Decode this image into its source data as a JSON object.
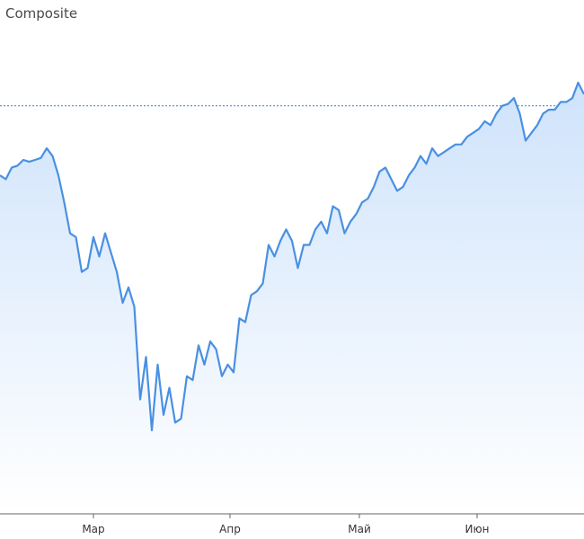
{
  "header": {
    "title": "Composite"
  },
  "colors": {
    "line": "#4a90e2",
    "area_top": "#cfe3fb",
    "area_bottom": "#ffffff",
    "reference_line": "#3b7fd0"
  },
  "chart_data": {
    "type": "area",
    "title": "Composite",
    "xlabel": "",
    "ylabel": "",
    "x_ticks": [
      "Мар",
      "Апр",
      "Май",
      "Июн"
    ],
    "grid": false,
    "legend": "none",
    "ylim": [
      0,
      100
    ],
    "reference_line": 94,
    "series": [
      {
        "values": [
          76,
          75,
          78,
          78.5,
          80,
          79.5,
          80,
          80.5,
          83,
          81,
          76,
          69,
          61,
          60,
          51,
          52,
          60,
          55,
          61,
          56,
          51,
          43,
          47,
          42,
          18,
          29,
          10,
          27,
          14,
          21,
          12,
          13,
          24,
          23,
          32,
          27,
          33,
          31,
          24,
          27,
          25,
          39,
          38,
          45,
          46,
          48,
          58,
          55,
          59,
          62,
          59,
          52,
          58,
          58,
          62,
          64,
          61,
          68,
          67,
          61,
          64,
          66,
          69,
          70,
          73,
          77,
          78,
          75,
          72,
          73,
          76,
          78,
          81,
          79,
          83,
          81,
          82,
          83,
          84,
          84,
          86,
          87,
          88,
          90,
          89,
          92,
          94,
          94.5,
          96,
          92,
          85,
          87,
          89,
          92,
          93,
          93,
          95,
          95,
          96,
          100,
          97
        ]
      }
    ]
  }
}
